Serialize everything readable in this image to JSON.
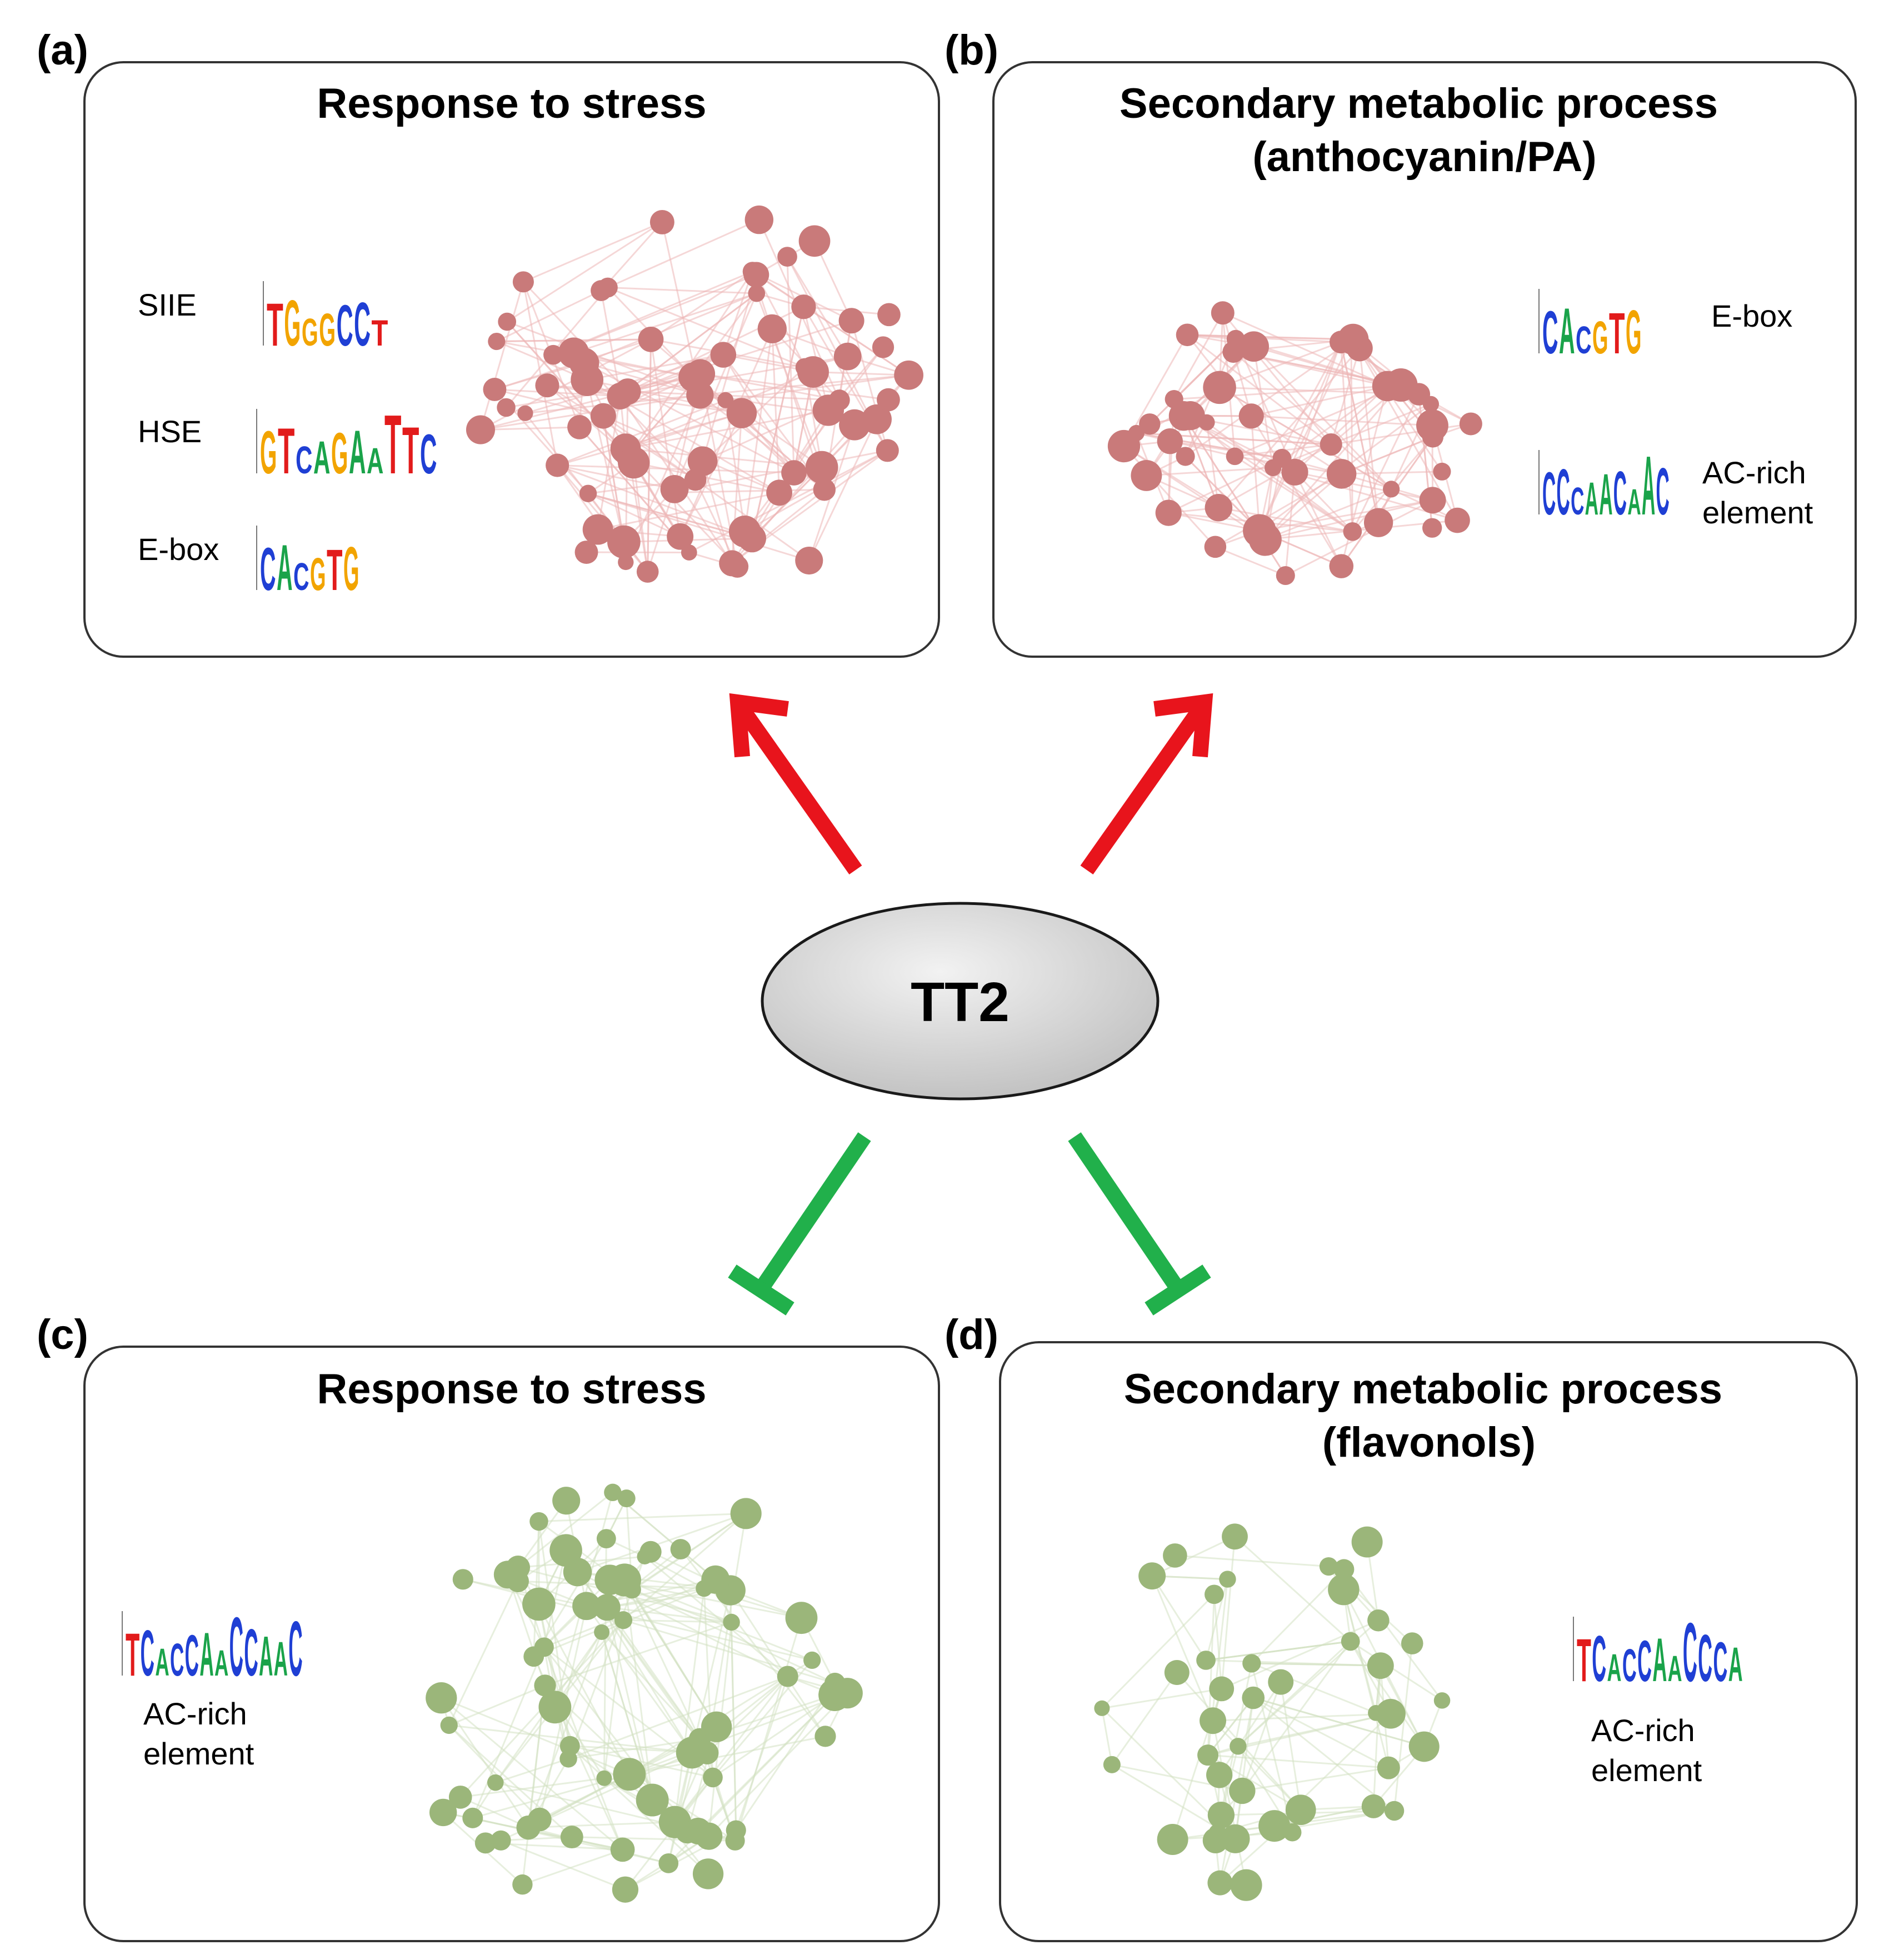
{
  "center": {
    "label": "TT2",
    "fill_top": "#f2f2f2",
    "fill_bottom": "#bfbfbf"
  },
  "colors": {
    "activate": "#e8141c",
    "repress": "#21b04b",
    "node_red": "#c97a7a",
    "node_green": "#9bb67a",
    "edge_red": "#eeb8b8",
    "edge_green": "#d4e2c4"
  },
  "panels": {
    "a": {
      "label": "(a)",
      "title_lines": [
        "Response to stress"
      ],
      "effect": "activate",
      "motifs": [
        {
          "name_lines": [
            "SIIE"
          ],
          "logo": "TGGGCCT"
        },
        {
          "name_lines": [
            "HSE"
          ],
          "logo": "GTCAGAATTC"
        },
        {
          "name_lines": [
            "E-box"
          ],
          "logo": "CACGTG"
        }
      ]
    },
    "b": {
      "label": "(b)",
      "title_lines": [
        "Secondary metabolic process",
        "(anthocyanin/PA)"
      ],
      "effect": "activate",
      "motifs": [
        {
          "name_lines": [
            "E-box"
          ],
          "logo": "CACGTG"
        },
        {
          "name_lines": [
            "AC-rich",
            "element"
          ],
          "logo": "CCCAACAAC"
        }
      ]
    },
    "c": {
      "label": "(c)",
      "title_lines": [
        "Response to stress"
      ],
      "effect": "repress",
      "motifs": [
        {
          "name_lines": [
            "AC-rich",
            "element"
          ],
          "logo": "TCACCAACCAAC"
        }
      ]
    },
    "d": {
      "label": "(d)",
      "title_lines": [
        "Secondary metabolic process",
        "(flavonols)"
      ],
      "effect": "repress",
      "motifs": [
        {
          "name_lines": [
            "AC-rich",
            "element"
          ],
          "logo": "TCACCAACCCA"
        }
      ]
    }
  }
}
